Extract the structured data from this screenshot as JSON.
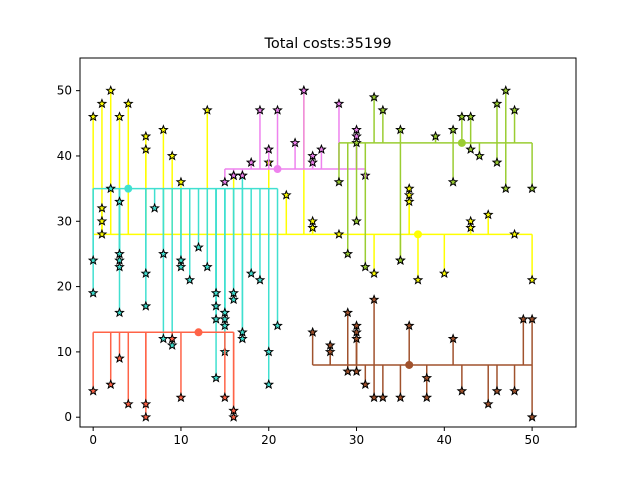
{
  "chart_data": {
    "type": "scatter",
    "title": "Total costs:35199",
    "xlabel": "",
    "ylabel": "",
    "xlim": [
      -1.5,
      55
    ],
    "ylim": [
      -1.5,
      55
    ],
    "xticks": [
      0,
      10,
      20,
      30,
      40,
      50
    ],
    "yticks": [
      0,
      10,
      20,
      30,
      40,
      50
    ],
    "grid": false,
    "legend": "none",
    "marker": "star",
    "groups": [
      {
        "color": "#ffff00",
        "hub": [
          37,
          28
        ],
        "trunk_y": 28,
        "points": [
          [
            0,
            46
          ],
          [
            1,
            48
          ],
          [
            1,
            32
          ],
          [
            1,
            30
          ],
          [
            1,
            28
          ],
          [
            2,
            50
          ],
          [
            3,
            46
          ],
          [
            4,
            48
          ],
          [
            6,
            43
          ],
          [
            6,
            41
          ],
          [
            8,
            44
          ],
          [
            9,
            40
          ],
          [
            10,
            36
          ],
          [
            13,
            47
          ],
          [
            16,
            37
          ],
          [
            20,
            39
          ],
          [
            22,
            34
          ],
          [
            24,
            50
          ],
          [
            25,
            30
          ],
          [
            25,
            29
          ],
          [
            28,
            28
          ],
          [
            32,
            22
          ],
          [
            35,
            24
          ],
          [
            36,
            35
          ],
          [
            36,
            34
          ],
          [
            36,
            33
          ],
          [
            37,
            21
          ],
          [
            40,
            22
          ],
          [
            43,
            30
          ],
          [
            43,
            29
          ],
          [
            45,
            31
          ],
          [
            48,
            28
          ],
          [
            50,
            21
          ]
        ]
      },
      {
        "color": "#40e0d0",
        "hub": [
          4,
          35
        ],
        "trunk_y": 35,
        "points": [
          [
            0,
            24
          ],
          [
            0,
            19
          ],
          [
            2,
            35
          ],
          [
            3,
            33
          ],
          [
            3,
            25
          ],
          [
            3,
            24
          ],
          [
            3,
            23
          ],
          [
            3,
            16
          ],
          [
            6,
            22
          ],
          [
            6,
            17
          ],
          [
            7,
            32
          ],
          [
            8,
            25
          ],
          [
            8,
            12
          ],
          [
            9,
            11
          ],
          [
            10,
            24
          ],
          [
            10,
            23
          ],
          [
            11,
            21
          ],
          [
            12,
            26
          ],
          [
            13,
            23
          ],
          [
            14,
            19
          ],
          [
            14,
            17
          ],
          [
            14,
            15
          ],
          [
            14,
            6
          ],
          [
            15,
            16
          ],
          [
            15,
            15
          ],
          [
            15,
            14
          ],
          [
            15,
            10
          ],
          [
            16,
            19
          ],
          [
            16,
            18
          ],
          [
            17,
            13
          ],
          [
            17,
            12
          ],
          [
            17,
            37
          ],
          [
            18,
            22
          ],
          [
            19,
            21
          ],
          [
            20,
            10
          ],
          [
            20,
            5
          ],
          [
            21,
            14
          ]
        ]
      },
      {
        "color": "#ee82ee",
        "hub": [
          21,
          38
        ],
        "trunk_y": 38,
        "points": [
          [
            15,
            36
          ],
          [
            16,
            37
          ],
          [
            17,
            37
          ],
          [
            18,
            39
          ],
          [
            19,
            47
          ],
          [
            20,
            41
          ],
          [
            21,
            47
          ],
          [
            23,
            42
          ],
          [
            24,
            50
          ],
          [
            25,
            40
          ],
          [
            25,
            39
          ],
          [
            26,
            41
          ],
          [
            28,
            48
          ],
          [
            30,
            44
          ],
          [
            30,
            43
          ],
          [
            31,
            37
          ]
        ]
      },
      {
        "color": "#9acd32",
        "hub": [
          42,
          42
        ],
        "trunk_y": 42,
        "points": [
          [
            28,
            36
          ],
          [
            29,
            25
          ],
          [
            30,
            42
          ],
          [
            30,
            30
          ],
          [
            31,
            23
          ],
          [
            32,
            49
          ],
          [
            33,
            47
          ],
          [
            35,
            44
          ],
          [
            35,
            24
          ],
          [
            39,
            43
          ],
          [
            41,
            44
          ],
          [
            41,
            36
          ],
          [
            42,
            46
          ],
          [
            43,
            46
          ],
          [
            43,
            41
          ],
          [
            44,
            40
          ],
          [
            46,
            39
          ],
          [
            46,
            48
          ],
          [
            47,
            50
          ],
          [
            47,
            35
          ],
          [
            48,
            47
          ],
          [
            50,
            35
          ]
        ]
      },
      {
        "color": "#ff6347",
        "hub": [
          12,
          13
        ],
        "trunk_y": 13,
        "points": [
          [
            0,
            4
          ],
          [
            2,
            5
          ],
          [
            3,
            9
          ],
          [
            4,
            2
          ],
          [
            6,
            2
          ],
          [
            6,
            0
          ],
          [
            9,
            12
          ],
          [
            10,
            3
          ],
          [
            15,
            3
          ],
          [
            16,
            1
          ],
          [
            16,
            0
          ]
        ]
      },
      {
        "color": "#a0522d",
        "hub": [
          36,
          8
        ],
        "trunk_y": 8,
        "points": [
          [
            25,
            13
          ],
          [
            27,
            11
          ],
          [
            27,
            10
          ],
          [
            29,
            7
          ],
          [
            29,
            16
          ],
          [
            30,
            14
          ],
          [
            30,
            13
          ],
          [
            30,
            12
          ],
          [
            30,
            7
          ],
          [
            31,
            5
          ],
          [
            32,
            3
          ],
          [
            32,
            18
          ],
          [
            33,
            3
          ],
          [
            35,
            3
          ],
          [
            36,
            14
          ],
          [
            38,
            3
          ],
          [
            38,
            6
          ],
          [
            41,
            12
          ],
          [
            42,
            4
          ],
          [
            45,
            2
          ],
          [
            46,
            4
          ],
          [
            48,
            4
          ],
          [
            49,
            15
          ],
          [
            50,
            15
          ],
          [
            50,
            0
          ]
        ]
      }
    ]
  }
}
